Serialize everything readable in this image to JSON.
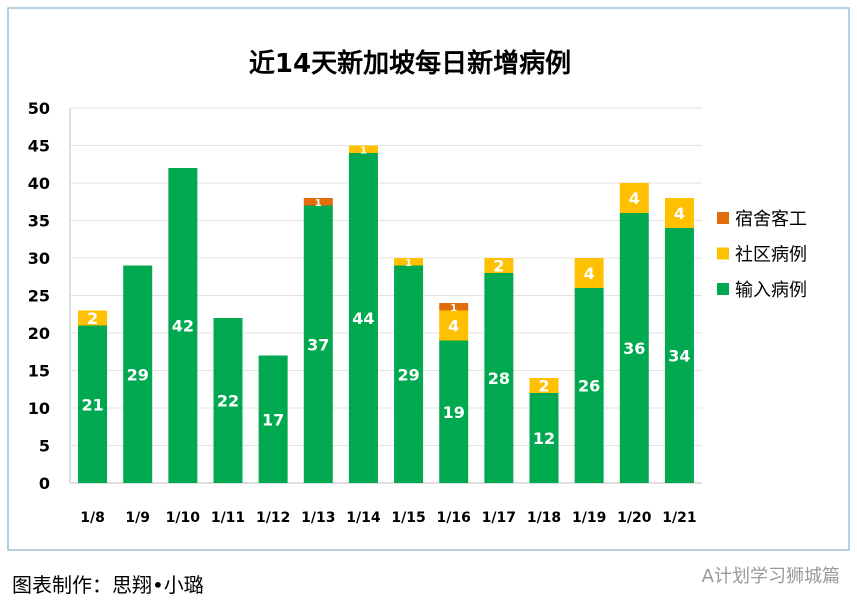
{
  "chart_data": {
    "type": "bar",
    "stacked": true,
    "title": "近14天新加坡每日新增病例",
    "categories": [
      "1/8",
      "1/9",
      "1/10",
      "1/11",
      "1/12",
      "1/13",
      "1/14",
      "1/15",
      "1/16",
      "1/17",
      "1/18",
      "1/19",
      "1/20",
      "1/21"
    ],
    "series": [
      {
        "name": "输入病例",
        "color": "#00A94F",
        "values": [
          21,
          29,
          42,
          22,
          17,
          37,
          44,
          29,
          19,
          28,
          12,
          26,
          36,
          34
        ]
      },
      {
        "name": "社区病例",
        "color": "#FFC000",
        "values": [
          2,
          0,
          0,
          0,
          0,
          0,
          1,
          1,
          4,
          2,
          2,
          4,
          4,
          4
        ]
      },
      {
        "name": "宿舍客工",
        "color": "#E36C0A",
        "values": [
          0,
          0,
          0,
          0,
          0,
          1,
          0,
          0,
          1,
          0,
          0,
          0,
          0,
          0
        ]
      }
    ],
    "ylim": [
      0,
      50
    ],
    "yticks": [
      0,
      5,
      10,
      15,
      20,
      25,
      30,
      35,
      40,
      45,
      50
    ],
    "grid": true,
    "legend_position": "right"
  },
  "footer": {
    "credit": "图表制作：思翔•小璐",
    "watermark": "A计划学习狮城篇"
  }
}
